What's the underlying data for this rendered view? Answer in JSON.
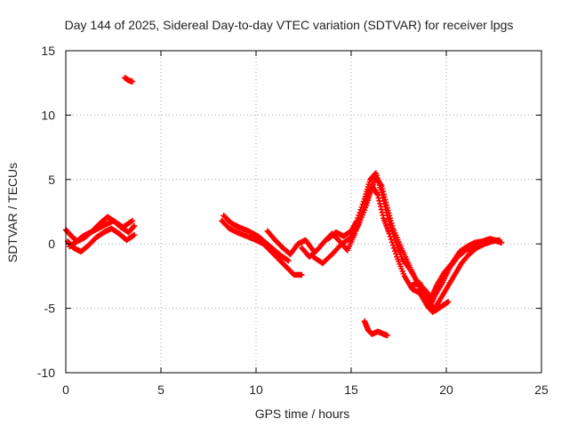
{
  "chart_data": {
    "type": "scatter",
    "title": "Day 144 of 2025, Sidereal Day-to-day VTEC variation (SDTVAR) for receiver lpgs",
    "xlabel": "GPS time / hours",
    "ylabel": "SDTVAR / TECUs",
    "xlim": [
      0,
      25
    ],
    "ylim": [
      -10,
      15
    ],
    "xticks": [
      0,
      5,
      10,
      15,
      20,
      25
    ],
    "xtick_labels": [
      "0",
      "5",
      "10",
      "15",
      "20",
      "25"
    ],
    "yticks": [
      -10,
      -5,
      0,
      5,
      10,
      15
    ],
    "ytick_labels": [
      "-10",
      "-5",
      "0",
      "5",
      "10",
      "15"
    ],
    "grid": true,
    "marker": "+",
    "series": [
      {
        "name": "SDTVAR",
        "color": "#ff0000",
        "segments": [
          {
            "x": [
              0.0,
              0.3,
              0.6,
              1.0,
              1.4,
              1.8,
              2.2,
              2.6,
              3.0,
              3.5
            ],
            "y": [
              1.1,
              0.6,
              0.2,
              0.5,
              1.0,
              1.6,
              2.1,
              1.7,
              1.3,
              1.8
            ]
          },
          {
            "x": [
              0.1,
              0.4,
              0.8,
              1.2,
              1.6,
              2.0,
              2.4,
              2.8,
              3.2,
              3.6
            ],
            "y": [
              0.2,
              -0.3,
              -0.6,
              -0.1,
              0.5,
              0.9,
              1.2,
              0.8,
              0.3,
              0.7
            ]
          },
          {
            "x": [
              0.2,
              0.5,
              0.9,
              1.3,
              1.7,
              2.1,
              2.5,
              2.9,
              3.3,
              3.6
            ],
            "y": [
              -0.2,
              0.1,
              0.6,
              0.9,
              1.2,
              1.5,
              1.8,
              1.3,
              0.9,
              1.4
            ]
          },
          {
            "x": [
              3.1,
              3.3,
              3.5
            ],
            "y": [
              12.9,
              12.7,
              12.6
            ]
          },
          {
            "x": [
              8.2,
              8.6,
              9.0,
              9.5,
              10.0,
              10.4,
              10.8,
              11.2,
              11.6,
              12.0,
              12.4
            ],
            "y": [
              1.8,
              1.2,
              0.9,
              0.6,
              0.3,
              0.0,
              -0.6,
              -1.2,
              -1.8,
              -2.4,
              -2.4
            ]
          },
          {
            "x": [
              8.3,
              8.7,
              9.1,
              9.6,
              10.1,
              10.5,
              10.9,
              11.3,
              11.7
            ],
            "y": [
              2.2,
              1.6,
              1.3,
              1.0,
              0.6,
              0.1,
              -0.4,
              -0.9,
              -1.3
            ]
          },
          {
            "x": [
              10.6,
              11.0,
              11.4,
              11.8,
              12.2,
              12.6,
              13.0
            ],
            "y": [
              1.0,
              0.3,
              -0.3,
              -0.8,
              0.0,
              0.3,
              -0.5
            ]
          },
          {
            "x": [
              12.4,
              12.8,
              13.2,
              13.6,
              14.0,
              14.4,
              14.8,
              15.2,
              15.6,
              16.0,
              16.3,
              16.6,
              16.9,
              17.2,
              17.6,
              18.0,
              18.4,
              18.8,
              19.1,
              19.4,
              19.8,
              20.2,
              20.6,
              21.0,
              21.5,
              22.0,
              22.5,
              22.9
            ],
            "y": [
              -0.3,
              -1.0,
              -0.5,
              0.2,
              0.8,
              0.2,
              -0.5,
              0.8,
              2.5,
              4.0,
              5.2,
              4.5,
              2.8,
              1.2,
              -0.2,
              -1.5,
              -2.8,
              -4.2,
              -5.0,
              -4.0,
              -3.0,
              -1.8,
              -1.0,
              -0.5,
              -0.2,
              0.1,
              0.3,
              0.1
            ]
          },
          {
            "x": [
              13.0,
              13.5,
              14.0,
              14.5,
              15.0,
              15.4,
              15.8,
              16.1,
              16.4,
              16.7,
              17.0,
              17.4,
              17.8,
              18.2,
              18.6,
              19.0,
              19.3,
              19.6,
              20.0,
              20.4,
              20.8,
              21.2,
              21.6,
              22.0,
              22.4,
              22.8
            ],
            "y": [
              -1.0,
              -1.5,
              -0.8,
              0.0,
              0.5,
              1.5,
              3.0,
              4.5,
              3.8,
              2.0,
              0.8,
              -1.0,
              -2.5,
              -3.5,
              -3.8,
              -4.8,
              -5.3,
              -4.5,
              -3.5,
              -2.5,
              -1.5,
              -0.8,
              -0.3,
              0.0,
              0.2,
              0.3
            ]
          },
          {
            "x": [
              13.8,
              14.2,
              14.6,
              15.0,
              15.3,
              15.7,
              16.0,
              16.3,
              16.6,
              16.9,
              17.3,
              17.7,
              18.1,
              18.5,
              18.9,
              19.2,
              19.5,
              19.9,
              20.3,
              20.7,
              21.1,
              21.5,
              21.9,
              22.3,
              22.8
            ],
            "y": [
              0.4,
              0.9,
              0.6,
              1.0,
              1.8,
              3.5,
              5.0,
              5.5,
              4.0,
              2.2,
              0.3,
              -1.2,
              -2.0,
              -3.0,
              -3.6,
              -4.2,
              -3.2,
              -2.2,
              -1.5,
              -0.6,
              -0.2,
              0.1,
              0.2,
              0.4,
              0.2
            ]
          },
          {
            "x": [
              18.2,
              18.6,
              19.0,
              19.4,
              19.8,
              20.1
            ],
            "y": [
              -3.2,
              -3.0,
              -4.2,
              -5.2,
              -4.8,
              -4.5
            ]
          },
          {
            "x": [
              15.7,
              15.9,
              16.1,
              16.4,
              16.7,
              16.9
            ],
            "y": [
              -6.0,
              -6.7,
              -7.0,
              -6.8,
              -7.0,
              -7.1
            ]
          }
        ]
      }
    ]
  }
}
